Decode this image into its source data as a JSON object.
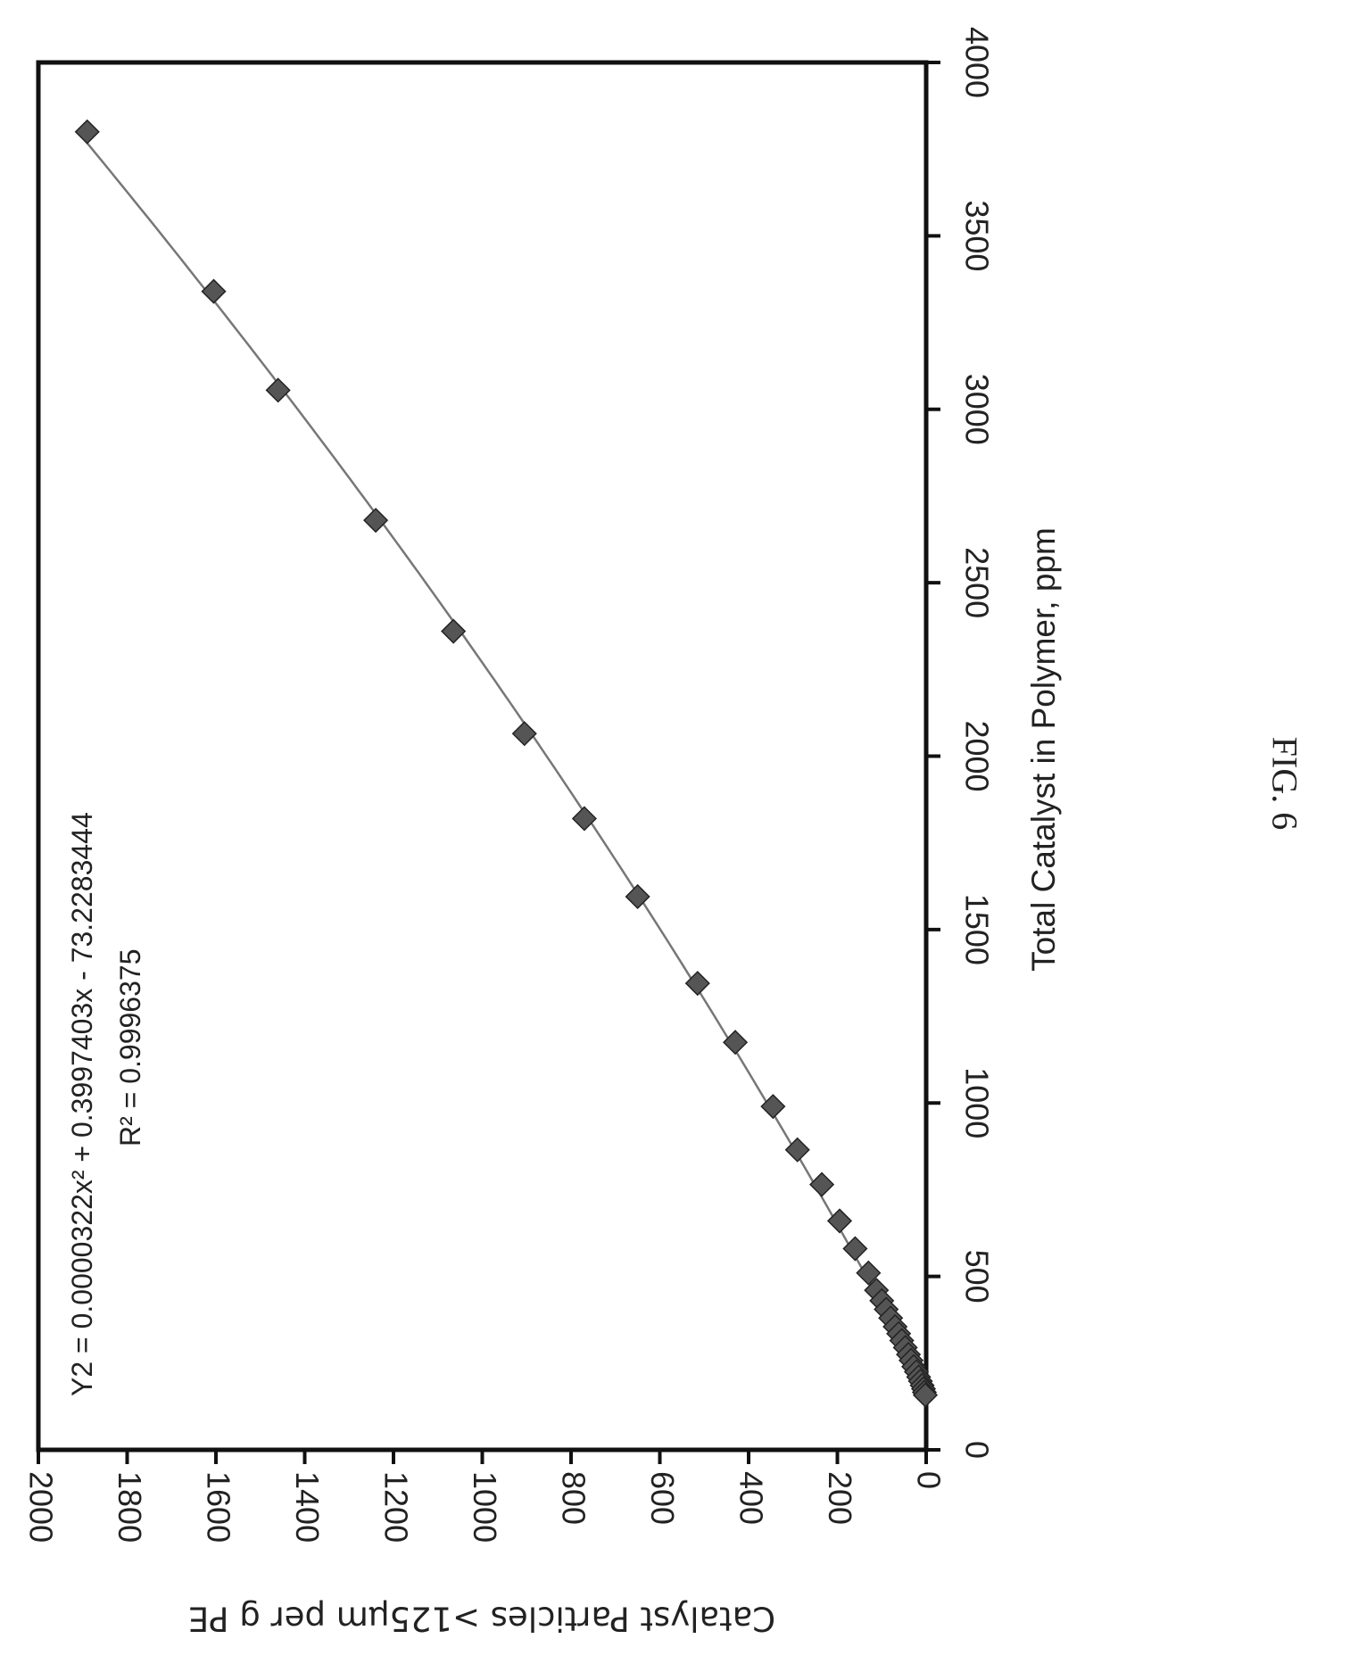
{
  "figure_label": "FIG. 6",
  "chart_data": {
    "type": "scatter",
    "orientation": "rotated 90° clockwise on the page",
    "title": "",
    "xlabel": "Total Catalyst in Polymer, ppm",
    "ylabel": "Catalyst Particles >125μm per g PE",
    "xlim": [
      0,
      4000
    ],
    "ylim": [
      0,
      2000
    ],
    "x_ticks": [
      0,
      500,
      1000,
      1500,
      2000,
      2500,
      3000,
      3500,
      4000
    ],
    "y_ticks": [
      0,
      200,
      400,
      600,
      800,
      1000,
      1200,
      1400,
      1600,
      1800,
      2000
    ],
    "grid": false,
    "legend": "none",
    "annotation": {
      "equation": "Y2 = 0.0000322x² + 0.3997403x - 73.2283444",
      "r_squared": "R² = 0.9996375"
    },
    "trendline": {
      "type": "polynomial",
      "coefficients": {
        "a": 3.22e-05,
        "b": 0.3997403,
        "c": -73.2283444
      },
      "x_range": [
        155,
        3800
      ]
    },
    "marker": "diamond",
    "marker_color": "#555555",
    "line_color": "#777777",
    "series": [
      {
        "points": [
          {
            "x": 3800,
            "y": 1890
          },
          {
            "x": 3340,
            "y": 1605
          },
          {
            "x": 3055,
            "y": 1460
          },
          {
            "x": 2680,
            "y": 1240
          },
          {
            "x": 2360,
            "y": 1065
          },
          {
            "x": 2065,
            "y": 905
          },
          {
            "x": 1820,
            "y": 770
          },
          {
            "x": 1595,
            "y": 650
          },
          {
            "x": 1345,
            "y": 515
          },
          {
            "x": 1175,
            "y": 430
          },
          {
            "x": 990,
            "y": 345
          },
          {
            "x": 865,
            "y": 290
          },
          {
            "x": 765,
            "y": 235
          },
          {
            "x": 660,
            "y": 195
          },
          {
            "x": 580,
            "y": 160
          },
          {
            "x": 510,
            "y": 130
          },
          {
            "x": 460,
            "y": 112
          },
          {
            "x": 430,
            "y": 100
          },
          {
            "x": 405,
            "y": 90
          },
          {
            "x": 380,
            "y": 80
          },
          {
            "x": 355,
            "y": 70
          },
          {
            "x": 335,
            "y": 62
          },
          {
            "x": 315,
            "y": 55
          },
          {
            "x": 295,
            "y": 47
          },
          {
            "x": 275,
            "y": 40
          },
          {
            "x": 258,
            "y": 34
          },
          {
            "x": 240,
            "y": 28
          },
          {
            "x": 225,
            "y": 22
          },
          {
            "x": 210,
            "y": 17
          },
          {
            "x": 198,
            "y": 13
          },
          {
            "x": 186,
            "y": 9
          },
          {
            "x": 176,
            "y": 6
          },
          {
            "x": 166,
            "y": 4
          },
          {
            "x": 158,
            "y": 2
          }
        ]
      }
    ]
  }
}
